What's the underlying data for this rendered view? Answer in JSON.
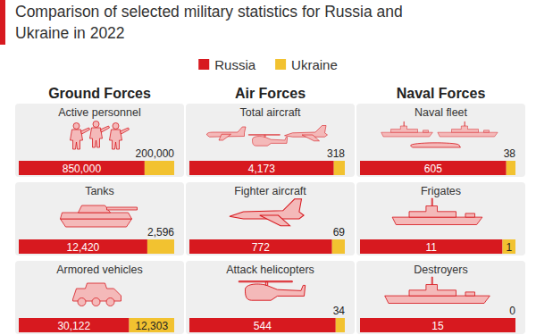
{
  "title": "Comparison of selected military statistics for Russia and Ukraine in 2022",
  "groups": [
    "Ground Forces",
    "Air Forces",
    "Naval Forces"
  ],
  "chart_data": [
    {
      "type": "bar",
      "title": "Active personnel",
      "orientation": "horizontal",
      "stacked": true,
      "data_labels": true,
      "tick_labels": false,
      "xlim": [
        0,
        1050000
      ],
      "series": [
        {
          "name": "Russia",
          "color": "#d7191f",
          "values": [
            850000
          ],
          "value_labels": [
            "850,000"
          ]
        },
        {
          "name": "Ukraine",
          "color": "#f2c230",
          "values": [
            200000
          ],
          "value_labels": [
            "200,000"
          ]
        }
      ]
    },
    {
      "type": "bar",
      "title": "Tanks",
      "orientation": "horizontal",
      "stacked": true,
      "data_labels": true,
      "tick_labels": false,
      "xlim": [
        0,
        15016
      ],
      "series": [
        {
          "name": "Russia",
          "color": "#d7191f",
          "values": [
            12420
          ],
          "value_labels": [
            "12,420"
          ]
        },
        {
          "name": "Ukraine",
          "color": "#f2c230",
          "values": [
            2596
          ],
          "value_labels": [
            "2,596"
          ]
        }
      ]
    },
    {
      "type": "bar",
      "title": "Armored vehicles",
      "orientation": "horizontal",
      "stacked": true,
      "data_labels": true,
      "tick_labels": false,
      "xlim": [
        0,
        42425
      ],
      "series": [
        {
          "name": "Russia",
          "color": "#d7191f",
          "values": [
            30122
          ],
          "value_labels": [
            "30,122"
          ]
        },
        {
          "name": "Ukraine",
          "color": "#f2c230",
          "values": [
            12303
          ],
          "value_labels": [
            "12,303"
          ]
        }
      ]
    },
    {
      "type": "bar",
      "title": "Total aircraft",
      "orientation": "horizontal",
      "stacked": true,
      "data_labels": true,
      "tick_labels": false,
      "xlim": [
        0,
        4491
      ],
      "series": [
        {
          "name": "Russia",
          "color": "#d7191f",
          "values": [
            4173
          ],
          "value_labels": [
            "4,173"
          ]
        },
        {
          "name": "Ukraine",
          "color": "#f2c230",
          "values": [
            318
          ]
        }
      ]
    },
    {
      "type": "bar",
      "title": "Fighter aircraft",
      "orientation": "horizontal",
      "stacked": true,
      "data_labels": true,
      "tick_labels": false,
      "xlim": [
        0,
        841
      ],
      "series": [
        {
          "name": "Russia",
          "color": "#d7191f",
          "values": [
            772
          ]
        },
        {
          "name": "Ukraine",
          "color": "#f2c230",
          "values": [
            69
          ]
        }
      ]
    },
    {
      "type": "bar",
      "title": "Attack helicopters",
      "orientation": "horizontal",
      "stacked": true,
      "data_labels": true,
      "tick_labels": false,
      "xlim": [
        0,
        578
      ],
      "series": [
        {
          "name": "Russia",
          "color": "#d7191f",
          "values": [
            544
          ]
        },
        {
          "name": "Ukraine",
          "color": "#f2c230",
          "values": [
            34
          ]
        }
      ]
    },
    {
      "type": "bar",
      "title": "Naval fleet",
      "orientation": "horizontal",
      "stacked": true,
      "data_labels": true,
      "tick_labels": false,
      "xlim": [
        0,
        643
      ],
      "series": [
        {
          "name": "Russia",
          "color": "#d7191f",
          "values": [
            605
          ]
        },
        {
          "name": "Ukraine",
          "color": "#f2c230",
          "values": [
            38
          ]
        }
      ]
    },
    {
      "type": "bar",
      "title": "Frigates",
      "orientation": "horizontal",
      "stacked": true,
      "data_labels": true,
      "tick_labels": false,
      "xlim": [
        0,
        12
      ],
      "series": [
        {
          "name": "Russia",
          "color": "#d7191f",
          "values": [
            11
          ]
        },
        {
          "name": "Ukraine",
          "color": "#f2c230",
          "values": [
            1
          ]
        }
      ]
    },
    {
      "type": "bar",
      "title": "Destroyers",
      "orientation": "horizontal",
      "stacked": true,
      "data_labels": true,
      "tick_labels": false,
      "xlim": [
        0,
        15
      ],
      "series": [
        {
          "name": "Russia",
          "color": "#d7191f",
          "values": [
            15
          ]
        },
        {
          "name": "Ukraine",
          "color": "#f2c230",
          "values": [
            0
          ]
        }
      ]
    }
  ]
}
